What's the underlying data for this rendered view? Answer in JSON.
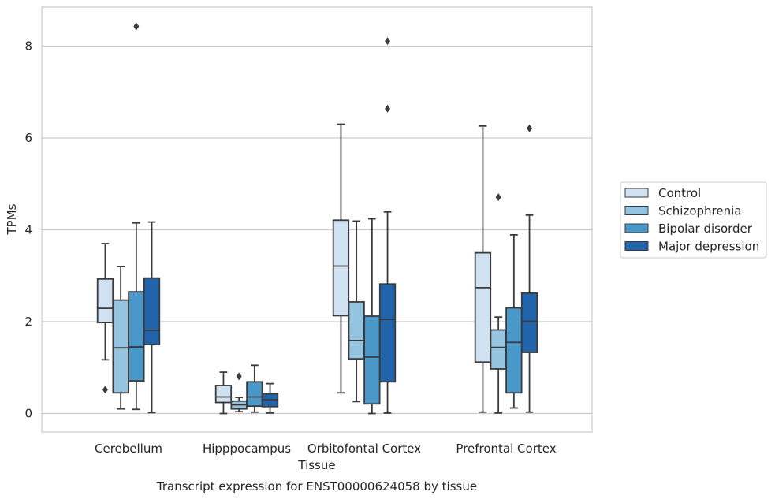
{
  "chart_data": {
    "type": "box",
    "title": "",
    "xlabel": "Tissue",
    "ylabel": "TPMs",
    "caption": "Transcript expression for ENST00000624058 by tissue",
    "ylim": [
      -0.4,
      8.85
    ],
    "yticks": [
      0,
      2,
      4,
      6,
      8
    ],
    "grid": "horizontal",
    "legend_position": "right",
    "categories": [
      "Cerebellum",
      "Hipppocampus",
      "Orbitofontal Cortex",
      "Prefrontal Cortex"
    ],
    "series": [
      {
        "name": "Control",
        "color": "#d0e1f2",
        "boxes": [
          {
            "whislo": 1.17,
            "q1": 1.98,
            "med": 2.29,
            "q3": 2.93,
            "whishi": 3.7,
            "fliers": [
              0.52
            ]
          },
          {
            "whislo": 0.0,
            "q1": 0.24,
            "med": 0.36,
            "q3": 0.61,
            "whishi": 0.9,
            "fliers": []
          },
          {
            "whislo": 0.45,
            "q1": 2.13,
            "med": 3.21,
            "q3": 4.21,
            "whishi": 6.3,
            "fliers": []
          },
          {
            "whislo": 0.03,
            "q1": 1.12,
            "med": 2.74,
            "q3": 3.5,
            "whishi": 6.26,
            "fliers": []
          }
        ]
      },
      {
        "name": "Schizophrenia",
        "color": "#94c4df",
        "boxes": [
          {
            "whislo": 0.1,
            "q1": 0.45,
            "med": 1.43,
            "q3": 2.47,
            "whishi": 3.2,
            "fliers": []
          },
          {
            "whislo": 0.04,
            "q1": 0.1,
            "med": 0.19,
            "q3": 0.27,
            "whishi": 0.35,
            "fliers": [
              0.81
            ]
          },
          {
            "whislo": 0.26,
            "q1": 1.19,
            "med": 1.59,
            "q3": 2.43,
            "whishi": 4.19,
            "fliers": []
          },
          {
            "whislo": 0.01,
            "q1": 0.97,
            "med": 1.44,
            "q3": 1.82,
            "whishi": 2.1,
            "fliers": [
              4.71
            ]
          }
        ]
      },
      {
        "name": "Bipolar disorder",
        "color": "#4a98c9",
        "boxes": [
          {
            "whislo": 0.09,
            "q1": 0.71,
            "med": 1.45,
            "q3": 2.65,
            "whishi": 4.15,
            "fliers": [
              8.43
            ]
          },
          {
            "whislo": 0.03,
            "q1": 0.16,
            "med": 0.36,
            "q3": 0.69,
            "whishi": 1.05,
            "fliers": []
          },
          {
            "whislo": 0.0,
            "q1": 0.21,
            "med": 1.23,
            "q3": 2.12,
            "whishi": 4.24,
            "fliers": []
          },
          {
            "whislo": 0.12,
            "q1": 0.45,
            "med": 1.55,
            "q3": 2.3,
            "whishi": 3.89,
            "fliers": []
          }
        ]
      },
      {
        "name": "Major depression",
        "color": "#2164ab",
        "boxes": [
          {
            "whislo": 0.02,
            "q1": 1.5,
            "med": 1.81,
            "q3": 2.95,
            "whishi": 4.17,
            "fliers": []
          },
          {
            "whislo": 0.01,
            "q1": 0.15,
            "med": 0.3,
            "q3": 0.43,
            "whishi": 0.65,
            "fliers": []
          },
          {
            "whislo": 0.01,
            "q1": 0.69,
            "med": 2.05,
            "q3": 2.82,
            "whishi": 4.39,
            "fliers": [
              6.64,
              8.11
            ]
          },
          {
            "whislo": 0.03,
            "q1": 1.33,
            "med": 2.01,
            "q3": 2.62,
            "whishi": 4.32,
            "fliers": [
              6.21
            ]
          }
        ]
      }
    ]
  }
}
